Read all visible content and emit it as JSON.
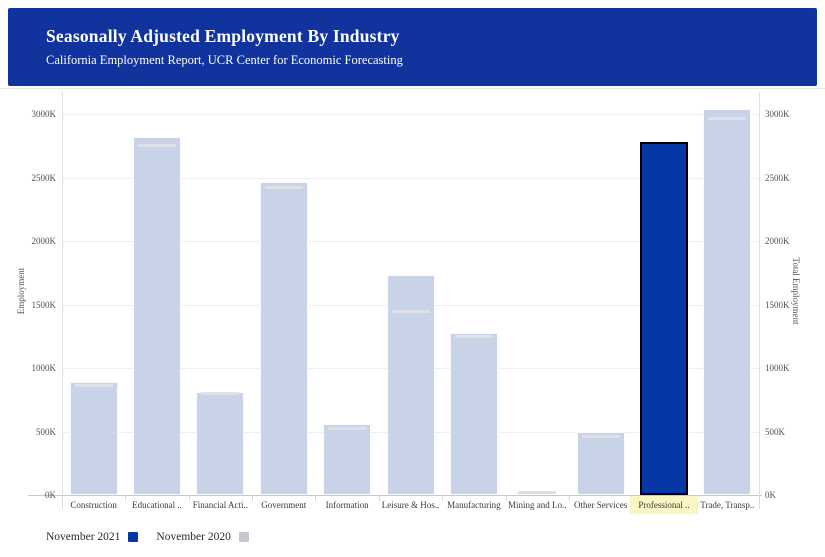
{
  "header": {
    "title": "Seasonally Adjusted Employment By Industry",
    "subtitle": "California Employment Report, UCR Center for Economic Forecasting",
    "bg_color": "#11339e"
  },
  "chart_data": {
    "type": "bar",
    "title": "Seasonally Adjusted Employment By Industry",
    "unit": "K",
    "categories": [
      "Construction",
      "Educational ..",
      "Financial Acti..",
      "Government",
      "Information",
      "Leisure & Hos..",
      "Manufacturing",
      "Mining and Lo..",
      "Other Services",
      "Professional ..",
      "Trade, Transp.."
    ],
    "series": [
      {
        "name": "November 2021",
        "type": "column",
        "color": "#0538a6",
        "muted_color": "#c9d3e7",
        "values": [
          890,
          2820,
          812,
          2465,
          556,
          1730,
          1272,
          18,
          498,
          2780,
          3040
        ]
      },
      {
        "name": "November 2020",
        "type": "tick-marker",
        "color": "#c4c7cb",
        "marker_color": "#dde0e5",
        "values": [
          860,
          2750,
          800,
          2420,
          525,
          1445,
          1250,
          22,
          460,
          null,
          2965
        ]
      }
    ],
    "selected_index": 9,
    "selected_label_highlight": "#f9f6c3",
    "ylabel_left": "Employment",
    "ylabel_right": "Total Employment",
    "yticks": [
      "0K",
      "500K",
      "1000K",
      "1500K",
      "2000K",
      "2500K",
      "3000K"
    ],
    "ytick_values": [
      0,
      500,
      1000,
      1500,
      2000,
      2500,
      3000
    ],
    "ylim": [
      0,
      3000
    ],
    "grid": true,
    "legend_position": "bottom-left"
  },
  "legend": {
    "items": [
      {
        "label": "November 2021",
        "color": "#0538a6"
      },
      {
        "label": "November 2020",
        "color": "#c4c7cb"
      }
    ]
  },
  "colors": {
    "header_bg": "#11339e",
    "bar_muted": "#c9d3e7",
    "bar_selected": "#0538a6",
    "bar_selected_border": "#000000",
    "marker_line": "#dde0e5",
    "gridline": "#edeff2",
    "axis_line": "#c9c9c9"
  }
}
